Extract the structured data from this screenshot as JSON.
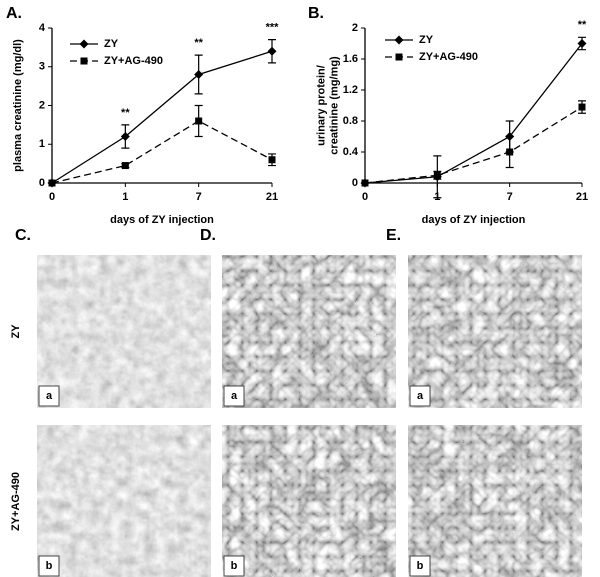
{
  "chart_data": [
    {
      "type": "line",
      "panel": "A.",
      "ylabel": [
        "plasma creatinine (mg/dl)"
      ],
      "xlabel": "days of ZY injection",
      "categories": [
        "0",
        "1",
        "7",
        "21"
      ],
      "series": [
        {
          "name": "ZY",
          "color": "#000000",
          "marker": "diamond",
          "dash": false,
          "values": [
            0,
            1.2,
            2.8,
            3.4
          ],
          "errors": [
            0,
            0.3,
            0.5,
            0.3
          ]
        },
        {
          "name": "ZY+AG-490",
          "color": "#000000",
          "marker": "square",
          "dash": true,
          "values": [
            0,
            0.45,
            1.6,
            0.6
          ],
          "errors": [
            0,
            0.05,
            0.4,
            0.15
          ]
        }
      ],
      "significance": [
        null,
        "**",
        "**",
        "***"
      ],
      "ylim": [
        0,
        4
      ],
      "yticks": [
        0,
        1,
        2,
        3,
        4
      ],
      "legend": "upper-left"
    },
    {
      "type": "line",
      "panel": "B.",
      "ylabel": [
        "urinary protein/",
        "creatinine (mg/mg)"
      ],
      "xlabel": "days of ZY injection",
      "categories": [
        "0",
        "1",
        "7",
        "21"
      ],
      "series": [
        {
          "name": "ZY",
          "color": "#000000",
          "marker": "diamond",
          "dash": false,
          "values": [
            0,
            0.08,
            0.6,
            1.8
          ],
          "errors": [
            0,
            0.27,
            0.2,
            0.08
          ]
        },
        {
          "name": "ZY+AG-490",
          "color": "#000000",
          "marker": "square",
          "dash": true,
          "values": [
            0,
            0.1,
            0.4,
            0.98
          ],
          "errors": [
            0,
            0.05,
            0.2,
            0.08
          ]
        }
      ],
      "significance": [
        null,
        null,
        null,
        "**"
      ],
      "ylim": [
        0,
        2
      ],
      "yticks": [
        0,
        0.4,
        0.8,
        1.2,
        1.6,
        2
      ],
      "legend": "upper-left"
    }
  ],
  "figure": {
    "panels": [
      {
        "letter": "C."
      },
      {
        "letter": "D."
      },
      {
        "letter": "E."
      }
    ],
    "rows": [
      {
        "label": "ZY",
        "tag": "a"
      },
      {
        "label": "ZY+AG-490",
        "tag": "b"
      }
    ]
  }
}
